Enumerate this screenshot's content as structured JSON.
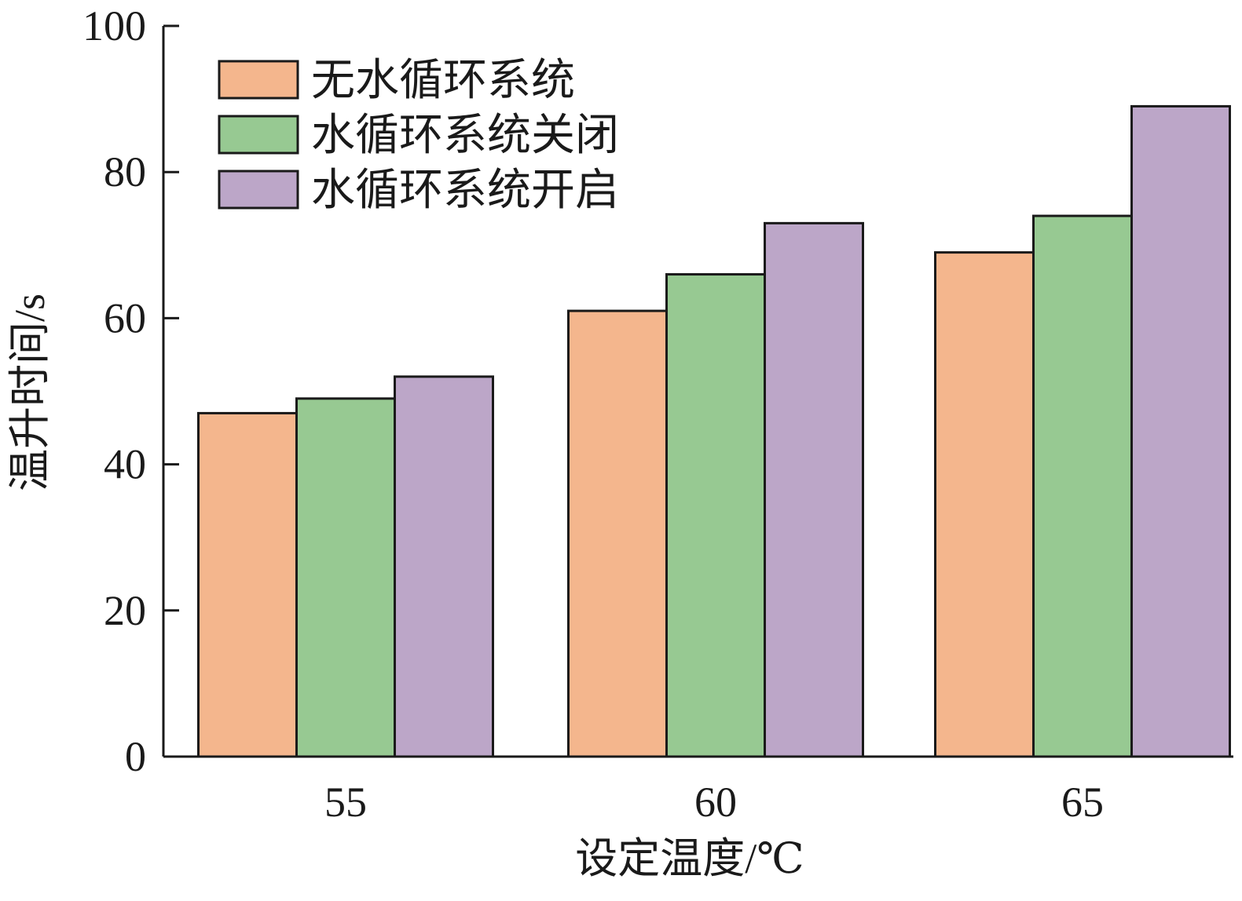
{
  "chart_data": {
    "type": "bar",
    "title": "",
    "xlabel": "设定温度/℃",
    "ylabel": "温升时间/s",
    "categories": [
      "55",
      "60",
      "65"
    ],
    "series": [
      {
        "name": "无水循环系统",
        "color": "#f4b68d",
        "values": [
          47,
          61,
          69
        ]
      },
      {
        "name": "水循环系统关闭",
        "color": "#97c992",
        "values": [
          49,
          66,
          74
        ]
      },
      {
        "name": "水循环系统开启",
        "color": "#bca6c8",
        "values": [
          52,
          73,
          89
        ]
      }
    ],
    "ylim": [
      0,
      100
    ],
    "yticks": [
      0,
      20,
      40,
      60,
      80,
      100
    ],
    "grid": false,
    "legend_position": "top-left",
    "bar_edge_color": "#1a1a1a"
  }
}
